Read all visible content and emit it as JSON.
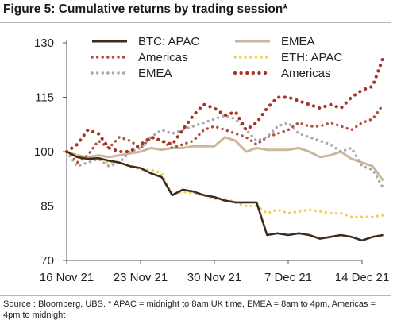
{
  "title": "Figure 5: Cumulative returns by trading session*",
  "source": "Source : Bloomberg, UBS. * APAC = midnight to 8am UK time, EMEA = 8am to 4pm, Americas = 4pm to midnight",
  "chart_data": {
    "type": "line",
    "ylim": [
      70,
      130
    ],
    "yticks": [
      "130",
      "115",
      "100",
      "85",
      "70"
    ],
    "ytick_values": [
      130,
      115,
      100,
      85,
      70
    ],
    "xticks": [
      "16 Nov 21",
      "23 Nov 21",
      "30 Nov 21",
      "7 Dec 21",
      "14 Dec 21"
    ],
    "xtick_dates": [
      "2021-11-16",
      "2021-11-23",
      "2021-11-30",
      "2021-12-07",
      "2021-12-14"
    ],
    "grid": false,
    "legend_position": "top",
    "series": [
      {
        "name": "BTC: APAC",
        "color": "#3d2b1f",
        "style": "solid",
        "x": [
          "2021-11-16",
          "2021-11-17",
          "2021-11-18",
          "2021-11-19",
          "2021-11-20",
          "2021-11-21",
          "2021-11-22",
          "2021-11-23",
          "2021-11-24",
          "2021-11-25",
          "2021-11-26",
          "2021-11-27",
          "2021-11-28",
          "2021-11-29",
          "2021-11-30",
          "2021-12-01",
          "2021-12-02",
          "2021-12-03",
          "2021-12-04",
          "2021-12-05",
          "2021-12-06",
          "2021-12-07",
          "2021-12-08",
          "2021-12-09",
          "2021-12-10",
          "2021-12-11",
          "2021-12-12",
          "2021-12-13",
          "2021-12-14",
          "2021-12-15",
          "2021-12-16"
        ],
        "y": [
          100,
          98.5,
          98,
          98.2,
          97.5,
          97,
          96,
          95.5,
          94,
          93,
          88,
          89.5,
          89,
          88,
          87.5,
          86.5,
          86,
          86,
          86,
          77,
          77.5,
          77,
          77.5,
          77,
          76,
          76.5,
          77,
          76.5,
          75.5,
          76.5,
          77
        ]
      },
      {
        "name": "Americas",
        "color": "#b0503a",
        "style": "dotted",
        "x": [
          "2021-11-16",
          "2021-11-17",
          "2021-11-18",
          "2021-11-19",
          "2021-11-20",
          "2021-11-21",
          "2021-11-22",
          "2021-11-23",
          "2021-11-24",
          "2021-11-25",
          "2021-11-26",
          "2021-11-27",
          "2021-11-28",
          "2021-11-29",
          "2021-11-30",
          "2021-12-01",
          "2021-12-02",
          "2021-12-03",
          "2021-12-04",
          "2021-12-05",
          "2021-12-06",
          "2021-12-07",
          "2021-12-08",
          "2021-12-09",
          "2021-12-10",
          "2021-12-11",
          "2021-12-12",
          "2021-12-13",
          "2021-12-14",
          "2021-12-15",
          "2021-12-16"
        ],
        "y": [
          100,
          97,
          99,
          103,
          101,
          104,
          103,
          101,
          104,
          103,
          101,
          102,
          103,
          106,
          107,
          106,
          105,
          104,
          102,
          104,
          105,
          106,
          108,
          107,
          107,
          108,
          107,
          106,
          108,
          109,
          113
        ]
      },
      {
        "name": "EMEA",
        "color": "#a8a8a8",
        "style": "dotted",
        "x": [
          "2021-11-16",
          "2021-11-17",
          "2021-11-18",
          "2021-11-19",
          "2021-11-20",
          "2021-11-21",
          "2021-11-22",
          "2021-11-23",
          "2021-11-24",
          "2021-11-25",
          "2021-11-26",
          "2021-11-27",
          "2021-11-28",
          "2021-11-29",
          "2021-11-30",
          "2021-12-01",
          "2021-12-02",
          "2021-12-03",
          "2021-12-04",
          "2021-12-05",
          "2021-12-06",
          "2021-12-07",
          "2021-12-08",
          "2021-12-09",
          "2021-12-10",
          "2021-12-11",
          "2021-12-12",
          "2021-12-13",
          "2021-12-14",
          "2021-12-15",
          "2021-12-16"
        ],
        "y": [
          100,
          96,
          97,
          98,
          96,
          97,
          100,
          101,
          104,
          106,
          105,
          106,
          107,
          108,
          109,
          110,
          109,
          106,
          103,
          104,
          107,
          108,
          105,
          104,
          103,
          102,
          100,
          101,
          96,
          95,
          90
        ]
      },
      {
        "name": "EMEA",
        "color": "#cbb79c",
        "style": "solid",
        "x": [
          "2021-11-16",
          "2021-11-17",
          "2021-11-18",
          "2021-11-19",
          "2021-11-20",
          "2021-11-21",
          "2021-11-22",
          "2021-11-23",
          "2021-11-24",
          "2021-11-25",
          "2021-11-26",
          "2021-11-27",
          "2021-11-28",
          "2021-11-29",
          "2021-11-30",
          "2021-12-01",
          "2021-12-02",
          "2021-12-03",
          "2021-12-04",
          "2021-12-05",
          "2021-12-06",
          "2021-12-07",
          "2021-12-08",
          "2021-12-09",
          "2021-12-10",
          "2021-12-11",
          "2021-12-12",
          "2021-12-13",
          "2021-12-14",
          "2021-12-15",
          "2021-12-16"
        ],
        "y": [
          100,
          99,
          98.5,
          99,
          98.5,
          99,
          99.5,
          100,
          101,
          100.5,
          101,
          101,
          101.5,
          101.5,
          101.5,
          104,
          103,
          100,
          101,
          100.5,
          100.5,
          100.5,
          101,
          100,
          98.5,
          99,
          100,
          98,
          97,
          96,
          92
        ]
      },
      {
        "name": "ETH: APAC",
        "color": "#f0d15a",
        "style": "dotted",
        "x": [
          "2021-11-16",
          "2021-11-17",
          "2021-11-18",
          "2021-11-19",
          "2021-11-20",
          "2021-11-21",
          "2021-11-22",
          "2021-11-23",
          "2021-11-24",
          "2021-11-25",
          "2021-11-26",
          "2021-11-27",
          "2021-11-28",
          "2021-11-29",
          "2021-11-30",
          "2021-12-01",
          "2021-12-02",
          "2021-12-03",
          "2021-12-04",
          "2021-12-05",
          "2021-12-06",
          "2021-12-07",
          "2021-12-08",
          "2021-12-09",
          "2021-12-10",
          "2021-12-11",
          "2021-12-12",
          "2021-12-13",
          "2021-12-14",
          "2021-12-15",
          "2021-12-16"
        ],
        "y": [
          100,
          99,
          98,
          98,
          97,
          97,
          96,
          95,
          95,
          94,
          88,
          89,
          88.5,
          88,
          87,
          87,
          86,
          85,
          85,
          83,
          84,
          83,
          83.5,
          84,
          83.5,
          83,
          83,
          82,
          82,
          82,
          82.5
        ]
      },
      {
        "name": "Americas",
        "color": "#a93226",
        "style": "dotted",
        "x": [
          "2021-11-16",
          "2021-11-17",
          "2021-11-18",
          "2021-11-19",
          "2021-11-20",
          "2021-11-21",
          "2021-11-22",
          "2021-11-23",
          "2021-11-24",
          "2021-11-25",
          "2021-11-26",
          "2021-11-27",
          "2021-11-28",
          "2021-11-29",
          "2021-11-30",
          "2021-12-01",
          "2021-12-02",
          "2021-12-03",
          "2021-12-04",
          "2021-12-05",
          "2021-12-06",
          "2021-12-07",
          "2021-12-08",
          "2021-12-09",
          "2021-12-10",
          "2021-12-11",
          "2021-12-12",
          "2021-12-13",
          "2021-12-14",
          "2021-12-15",
          "2021-12-16"
        ],
        "y": [
          100,
          102,
          106,
          105,
          101,
          100,
          100,
          102,
          104,
          103,
          102,
          106,
          110,
          113,
          112,
          110,
          111,
          106,
          108,
          112,
          115,
          115,
          114,
          113,
          112,
          113,
          112,
          115,
          117,
          118,
          126
        ]
      }
    ]
  }
}
